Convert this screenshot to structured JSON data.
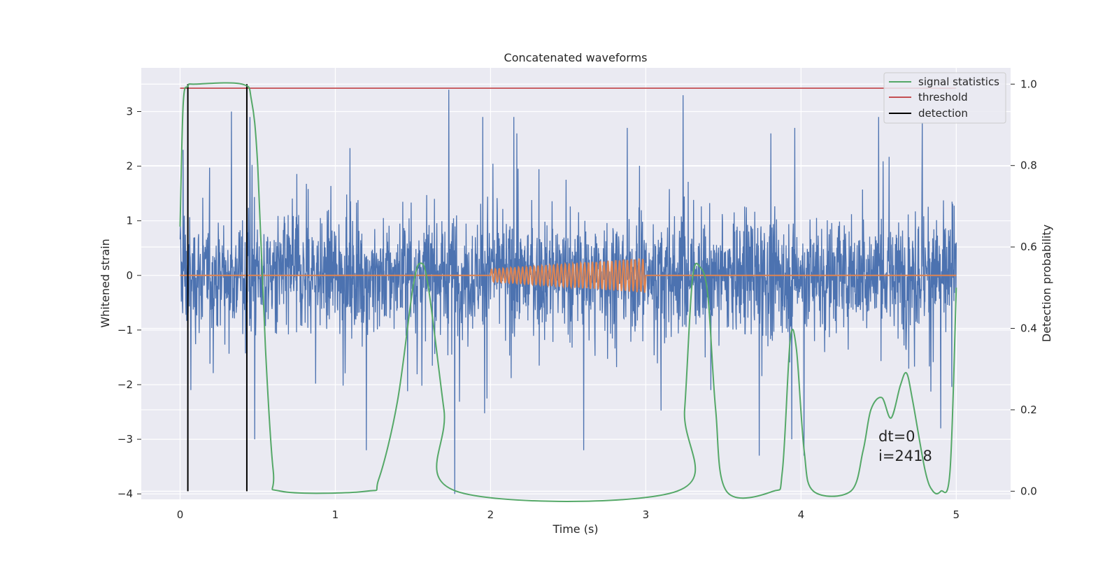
{
  "chart_data": {
    "type": "line",
    "title": "Concatenated waveforms",
    "xlabel": "Time (s)",
    "ylabel": "Whitened strain",
    "y2label": "Detection probability",
    "xlim": [
      -0.25,
      5.35
    ],
    "ylim": [
      -4.1,
      3.8
    ],
    "y2lim": [
      -0.02,
      1.04
    ],
    "x_ticks": [
      0,
      1,
      2,
      3,
      4,
      5
    ],
    "y_ticks": [
      -4,
      -3,
      -2,
      -1,
      0,
      1,
      2,
      3
    ],
    "y2_ticks": [
      0.0,
      0.2,
      0.4,
      0.6,
      0.8,
      1.0
    ],
    "x_tick_labels": [
      "0",
      "1",
      "2",
      "3",
      "4",
      "5"
    ],
    "y_tick_labels": [
      "−4",
      "−3",
      "−2",
      "−1",
      "0",
      "1",
      "2",
      "3"
    ],
    "y2_tick_labels": [
      "0.0",
      "0.2",
      "0.4",
      "0.6",
      "0.8",
      "1.0"
    ],
    "grid": true,
    "legend_position": "top-right",
    "noise": {
      "color": "#4c72b0",
      "x_range": [
        0,
        5
      ],
      "typical_range": [
        -1.5,
        1.5
      ],
      "spikes": [
        [
          0.02,
          2.3
        ],
        [
          0.33,
          3.0
        ],
        [
          0.45,
          2.9
        ],
        [
          1.73,
          3.4
        ],
        [
          1.95,
          2.9
        ],
        [
          2.15,
          2.9
        ],
        [
          2.88,
          2.7
        ],
        [
          3.24,
          3.3
        ],
        [
          3.96,
          2.7
        ],
        [
          4.5,
          2.9
        ],
        [
          4.78,
          2.8
        ],
        [
          0.07,
          -2.1
        ],
        [
          0.48,
          -3.0
        ],
        [
          1.2,
          -3.2
        ],
        [
          1.77,
          -4.0
        ],
        [
          2.6,
          -3.2
        ],
        [
          3.73,
          -3.3
        ],
        [
          3.94,
          -3.0
        ],
        [
          4.02,
          -3.3
        ],
        [
          4.9,
          -2.8
        ]
      ]
    },
    "signal": {
      "color": "#dd8452",
      "x_range": [
        2.0,
        3.0
      ],
      "amplitude_start": 0.12,
      "amplitude_end": 0.32,
      "cycles": 40,
      "baseline": 0
    },
    "threshold": {
      "color": "#c44e52",
      "value": 0.99,
      "x_range": [
        0,
        5
      ]
    },
    "detections": {
      "color": "#000000",
      "x": [
        0.05,
        0.43
      ],
      "y2_range": [
        0,
        1.0
      ]
    },
    "statistics": {
      "color": "#55a868",
      "points": [
        [
          0.0,
          0.65
        ],
        [
          0.02,
          0.95
        ],
        [
          0.05,
          0.995
        ],
        [
          0.1,
          1.0
        ],
        [
          0.4,
          1.0
        ],
        [
          0.46,
          0.96
        ],
        [
          0.5,
          0.8
        ],
        [
          0.55,
          0.35
        ],
        [
          0.6,
          0.05
        ],
        [
          0.65,
          0.0
        ],
        [
          1.2,
          0.0
        ],
        [
          1.28,
          0.03
        ],
        [
          1.4,
          0.22
        ],
        [
          1.5,
          0.5
        ],
        [
          1.55,
          0.56
        ],
        [
          1.6,
          0.5
        ],
        [
          1.7,
          0.2
        ],
        [
          1.78,
          0.0
        ],
        [
          3.2,
          0.0
        ],
        [
          3.25,
          0.2
        ],
        [
          3.3,
          0.52
        ],
        [
          3.35,
          0.55
        ],
        [
          3.4,
          0.48
        ],
        [
          3.45,
          0.2
        ],
        [
          3.52,
          0.0
        ],
        [
          3.82,
          0.0
        ],
        [
          3.88,
          0.05
        ],
        [
          3.93,
          0.37
        ],
        [
          3.97,
          0.35
        ],
        [
          4.02,
          0.1
        ],
        [
          4.08,
          0.0
        ],
        [
          4.32,
          0.0
        ],
        [
          4.4,
          0.1
        ],
        [
          4.45,
          0.2
        ],
        [
          4.52,
          0.23
        ],
        [
          4.58,
          0.18
        ],
        [
          4.64,
          0.26
        ],
        [
          4.68,
          0.29
        ],
        [
          4.72,
          0.22
        ],
        [
          4.8,
          0.05
        ],
        [
          4.85,
          0.0
        ],
        [
          4.9,
          0.0
        ],
        [
          4.96,
          0.05
        ],
        [
          5.0,
          0.5
        ]
      ]
    },
    "legend": [
      {
        "label": "signal statistics",
        "color": "#55a868"
      },
      {
        "label": "threshold",
        "color": "#c44e52"
      },
      {
        "label": "detection",
        "color": "#000000"
      }
    ],
    "annotations": [
      "dt=0",
      "i=2418"
    ],
    "background_color": "#eaeaf2",
    "grid_color": "#ffffff"
  }
}
